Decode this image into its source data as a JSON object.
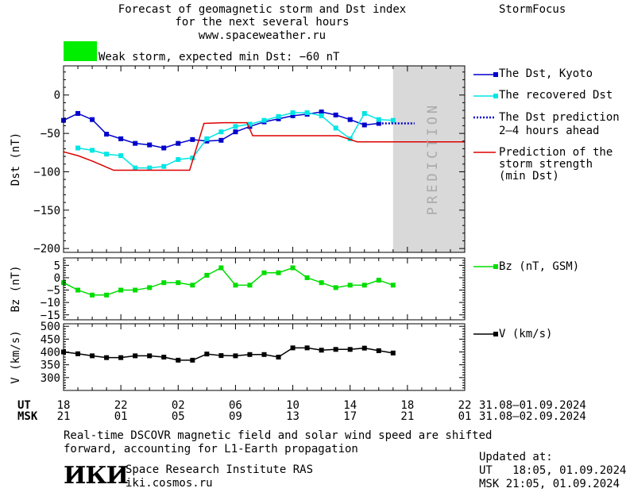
{
  "header": {
    "title_lines": [
      "Forecast of geomagnetic storm and Dst index",
      "for the next several hours",
      "www.spaceweather.ru"
    ],
    "brand": "StormFocus",
    "status_color": "#00ee00",
    "status_text": "Weak storm, expected min Dst: −60 nT"
  },
  "legend": {
    "dst_kyoto": "The Dst, Kyoto",
    "dst_recovered": "The recovered Dst",
    "dst_prediction": [
      "The Dst prediction",
      "2–4 hours ahead"
    ],
    "storm_strength": [
      "Prediction of the",
      "storm strength",
      "(min Dst)"
    ],
    "bz": "Bz (nT, GSM)",
    "v": "V (km/s)"
  },
  "prediction_label": "PREDICTION",
  "time_axis": {
    "ut_label": "UT",
    "msk_label": "MSK",
    "ut_ticks": [
      "18",
      "22",
      "02",
      "06",
      "10",
      "14",
      "18",
      "22"
    ],
    "msk_ticks": [
      "21",
      "01",
      "05",
      "09",
      "13",
      "17",
      "21",
      "01"
    ],
    "ut_range": "31.08–01.09.2024",
    "msk_range": "31.08–02.09.2024"
  },
  "footer": {
    "note_lines": [
      "Real-time DSCOVR magnetic field and solar wind speed are shifted",
      "forward, accounting for L1-Earth propagation"
    ],
    "logo_text": "ИКИ",
    "institute": "Space Research Institute RAS",
    "site": "iki.cosmos.ru",
    "updated_label": "Updated at:",
    "updated_ut": "UT   18:05, 01.09.2024",
    "updated_msk": "MSK 21:05, 01.09.2024"
  },
  "chart_data": [
    {
      "type": "line",
      "ylabel": "Dst (nT)",
      "ylim": [
        -205,
        38
      ],
      "xlim": [
        0,
        28
      ],
      "yticks": [
        0,
        -50,
        -100,
        -150,
        -200
      ],
      "prediction_region": [
        23,
        28
      ],
      "series": [
        {
          "name": "The Dst, Kyoto",
          "color": "#0000cc",
          "marker": "square",
          "x": [
            0,
            1,
            2,
            3,
            4,
            5,
            6,
            7,
            8,
            9,
            10,
            11,
            12,
            13,
            14,
            15,
            16,
            17,
            18,
            19,
            20,
            21,
            22
          ],
          "y": [
            -33,
            -24,
            -32,
            -51,
            -57,
            -63,
            -65,
            -69,
            -63,
            -58,
            -60,
            -59,
            -48,
            -41,
            -35,
            -31,
            -27,
            -25,
            -22,
            -26,
            -32,
            -39,
            -37
          ]
        },
        {
          "name": "The recovered Dst",
          "color": "#00e5e5",
          "marker": "square",
          "x": [
            1,
            2,
            3,
            4,
            5,
            6,
            7,
            8,
            9,
            10,
            11,
            12,
            13,
            14,
            15,
            16,
            17,
            18,
            19,
            20,
            21,
            22,
            23
          ],
          "y": [
            -69,
            -72,
            -77,
            -79,
            -95,
            -95,
            -93,
            -84,
            -82,
            -57,
            -48,
            -41,
            -38,
            -33,
            -28,
            -23,
            -23,
            -27,
            -43,
            -57,
            -24,
            -32,
            -33
          ]
        },
        {
          "name": "The Dst prediction",
          "color": "#0000cc",
          "style": "dotted",
          "x": [
            22,
            24.5
          ],
          "y": [
            -37,
            -37
          ]
        },
        {
          "name": "Prediction of the storm strength (min Dst)",
          "color": "#dd0000",
          "style": "step",
          "x": [
            0,
            1,
            2,
            3,
            3.5,
            4,
            8.8,
            9.8,
            11.2,
            12.8,
            13.2,
            19.2,
            20.5,
            28
          ],
          "y": [
            -74,
            -79,
            -86,
            -94,
            -98,
            -98,
            -98,
            -37,
            -36,
            -36,
            -53,
            -53,
            -61,
            -61
          ]
        }
      ]
    },
    {
      "type": "line",
      "ylabel": "Bz (nT)",
      "ylim": [
        -17,
        8
      ],
      "xlim": [
        0,
        28
      ],
      "yticks": [
        5,
        0,
        -5,
        -10,
        -15
      ],
      "series": [
        {
          "name": "Bz (nT, GSM)",
          "color": "#00dd00",
          "marker": "square",
          "x": [
            0,
            1,
            2,
            3,
            4,
            5,
            6,
            7,
            8,
            9,
            10,
            11,
            12,
            13,
            14,
            15,
            16,
            17,
            18,
            19,
            20,
            21,
            22,
            23
          ],
          "y": [
            -2,
            -5,
            -7,
            -7,
            -5,
            -5,
            -4,
            -2,
            -2,
            -3,
            1,
            4,
            -3,
            -3,
            2,
            2,
            4,
            0,
            -2,
            -4,
            -3,
            -3,
            -1,
            -3
          ]
        }
      ]
    },
    {
      "type": "line",
      "ylabel": "V (km/s)",
      "ylim": [
        250,
        510
      ],
      "xlim": [
        0,
        28
      ],
      "yticks": [
        500,
        450,
        400,
        350,
        300
      ],
      "series": [
        {
          "name": "V (km/s)",
          "color": "#000000",
          "marker": "square",
          "x": [
            0,
            1,
            2,
            3,
            4,
            5,
            6,
            7,
            8,
            9,
            10,
            11,
            12,
            13,
            14,
            15,
            16,
            17,
            18,
            19,
            20,
            21,
            22,
            23
          ],
          "y": [
            400,
            393,
            385,
            378,
            378,
            385,
            385,
            380,
            368,
            368,
            392,
            386,
            385,
            390,
            390,
            380,
            416,
            416,
            407,
            410,
            410,
            415,
            405,
            396
          ]
        }
      ]
    }
  ]
}
